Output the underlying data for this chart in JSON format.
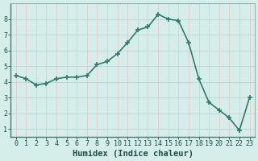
{
  "x": [
    0,
    1,
    2,
    3,
    4,
    5,
    6,
    7,
    8,
    9,
    10,
    11,
    12,
    13,
    14,
    15,
    16,
    17,
    18,
    19,
    20,
    21,
    22,
    23
  ],
  "y": [
    4.4,
    4.2,
    3.8,
    3.9,
    4.2,
    4.3,
    4.3,
    4.4,
    5.1,
    5.3,
    5.8,
    6.5,
    7.3,
    7.5,
    8.3,
    8.0,
    7.9,
    6.5,
    4.2,
    2.7,
    2.2,
    1.7,
    0.9,
    3.0
  ],
  "line_color": "#2d7d6e",
  "marker": "+",
  "marker_size": 4,
  "bg_color": "#d6eeea",
  "grid_color_v": "#e8c8c8",
  "grid_color_h": "#b8d8d4",
  "xlabel": "Humidex (Indice chaleur)",
  "xlim": [
    -0.5,
    23.5
  ],
  "ylim": [
    0.5,
    9.0
  ],
  "yticks": [
    1,
    2,
    3,
    4,
    5,
    6,
    7,
    8
  ],
  "xticks": [
    0,
    1,
    2,
    3,
    4,
    5,
    6,
    7,
    8,
    9,
    10,
    11,
    12,
    13,
    14,
    15,
    16,
    17,
    18,
    19,
    20,
    21,
    22,
    23
  ],
  "font_color": "#1a5048",
  "spine_color": "#8ab8b0",
  "xlabel_fontsize": 7.5,
  "tick_fontsize": 6,
  "linewidth": 1.2,
  "marker_linewidth": 1.2
}
